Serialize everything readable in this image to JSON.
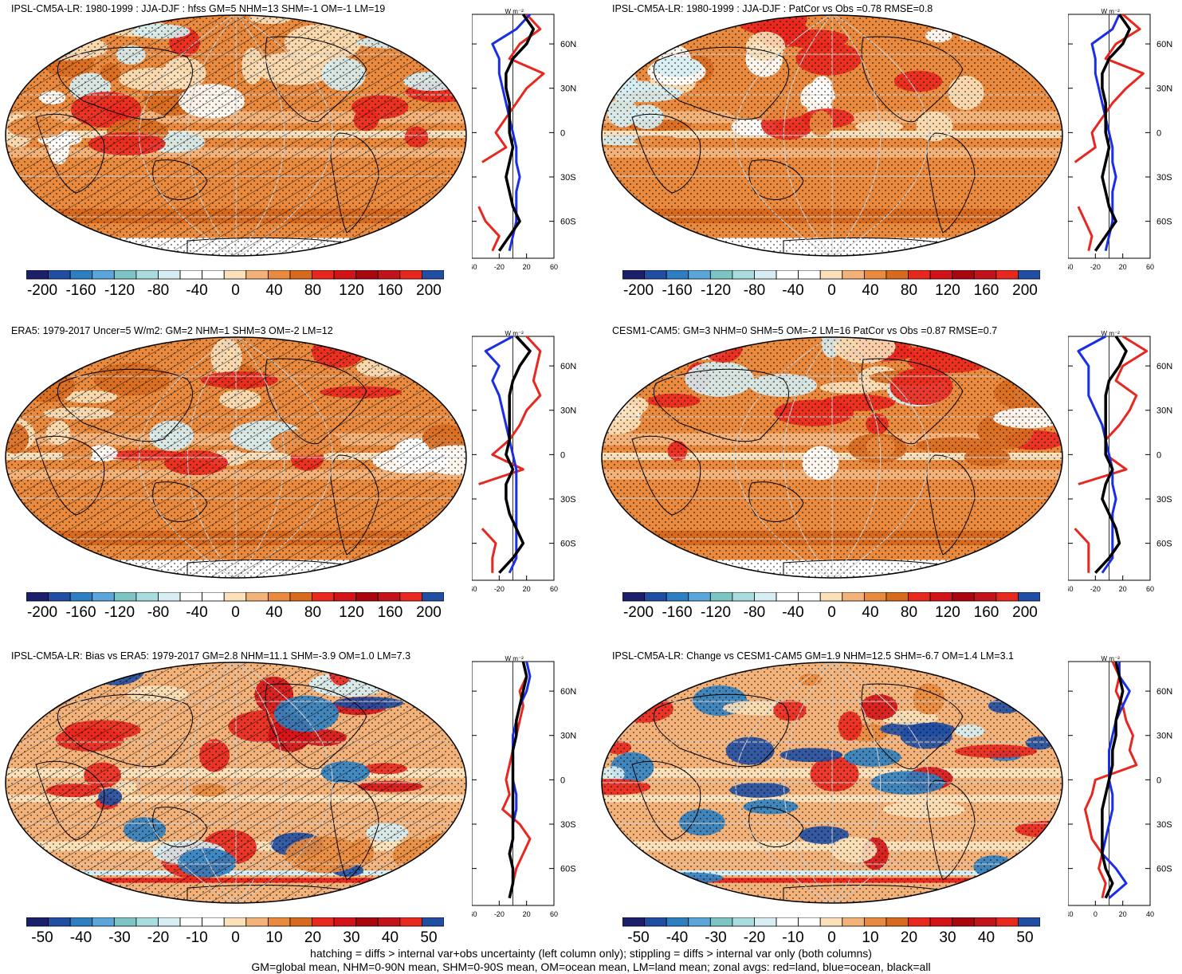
{
  "colors": {
    "land": "#e8271e",
    "ocean": "#1a2ee8",
    "all": "#000000",
    "palette": [
      "#1c1f6b",
      "#1f4ea3",
      "#2d7fc1",
      "#5aa6db",
      "#7cc5c4",
      "#a9dcdf",
      "#d6eef3",
      "#ffffff",
      "#ffffff",
      "#fbe0b9",
      "#f3b27a",
      "#e98a3e",
      "#d86a1e",
      "#e8271e",
      "#d41318",
      "#a9060e",
      "#c4121b",
      "#e8271e",
      "#1f4ea3"
    ]
  },
  "panels": [
    {
      "id": "model-season-diff",
      "title": "IPSL-CM5A-LR: 1980-1999 : JJA-DJF : hfss GM=5 NHM=13 SHM=-1 OM=-1 LM=19",
      "colorbar_labels": [
        "-200",
        "-160",
        "-120",
        "-80",
        "-40",
        "0",
        "40",
        "80",
        "120",
        "160",
        "200"
      ],
      "zonal_ylabels": [
        "60N",
        "30N",
        "0",
        "30S",
        "60S"
      ],
      "zonal_xlabels": [
        "-60",
        "-20",
        "20",
        "60"
      ],
      "unit_label": "W m⁻²",
      "overlay": "hatch+stipple",
      "pattern": "seasonal"
    },
    {
      "id": "model-season-diff-cor",
      "title": "IPSL-CM5A-LR: 1980-1999 : JJA-DJF : PatCor vs Obs =0.78 RMSE=0.8",
      "colorbar_labels": [
        "-200",
        "-160",
        "-120",
        "-80",
        "-40",
        "0",
        "40",
        "80",
        "120",
        "160",
        "200"
      ],
      "zonal_ylabels": [
        "60N",
        "30N",
        "0",
        "30S",
        "60S"
      ],
      "zonal_xlabels": [
        "-60",
        "-20",
        "20",
        "60"
      ],
      "unit_label": "W m⁻²",
      "overlay": "stipple",
      "pattern": "seasonal"
    },
    {
      "id": "era5",
      "title": "ERA5: 1979-2017 Uncer=5 W/m2: GM=2 NHM=1 SHM=3 OM=-2 LM=12",
      "colorbar_labels": [
        "-200",
        "-160",
        "-120",
        "-80",
        "-40",
        "0",
        "40",
        "80",
        "120",
        "160",
        "200"
      ],
      "zonal_ylabels": [
        "60N",
        "30N",
        "0",
        "30S",
        "60S"
      ],
      "zonal_xlabels": [
        "-60",
        "-20",
        "20",
        "60"
      ],
      "unit_label": "W m⁻²",
      "overlay": "hatch+stipple",
      "pattern": "seasonal"
    },
    {
      "id": "cesm",
      "title": "CESM1-CAM5: GM=3 NHM=0 SHM=5 OM=-2 LM=16 PatCor vs Obs =0.87 RMSE=0.7",
      "colorbar_labels": [
        "-200",
        "-160",
        "-120",
        "-80",
        "-40",
        "0",
        "40",
        "80",
        "120",
        "160",
        "200"
      ],
      "zonal_ylabels": [
        "60N",
        "30N",
        "0",
        "30S",
        "60S"
      ],
      "zonal_xlabels": [
        "-60",
        "-20",
        "20",
        "60"
      ],
      "unit_label": "W m⁻²",
      "overlay": "stipple",
      "pattern": "seasonal"
    },
    {
      "id": "bias-era5",
      "title": "IPSL-CM5A-LR: Bias vs ERA5: 1979-2017 GM=2.8 NHM=11.1 SHM=-3.9 OM=1.0 LM=7.3",
      "colorbar_labels": [
        "-50",
        "-40",
        "-30",
        "-20",
        "-10",
        "0",
        "10",
        "20",
        "30",
        "40",
        "50"
      ],
      "zonal_ylabels": [
        "60N",
        "30N",
        "0",
        "30S",
        "60S"
      ],
      "zonal_xlabels": [
        "-60",
        "-20",
        "20",
        "60"
      ],
      "unit_label": "W m⁻²",
      "overlay": "hatch+stipple",
      "pattern": "bias"
    },
    {
      "id": "change-cesm",
      "title": "IPSL-CM5A-LR: Change vs CESM1-CAM5 GM=1.9 NHM=12.5 SHM=-6.7 OM=1.4 LM=3.1",
      "colorbar_labels": [
        "-50",
        "-40",
        "-30",
        "-20",
        "-10",
        "0",
        "10",
        "20",
        "30",
        "40",
        "50"
      ],
      "zonal_ylabels": [
        "60N",
        "30N",
        "0",
        "30S",
        "60S"
      ],
      "zonal_xlabels": [
        "-40",
        "0",
        "20",
        "40"
      ],
      "unit_label": "W m⁻²",
      "overlay": "stipple",
      "pattern": "bias"
    }
  ],
  "footer": {
    "line1": "hatching = diffs > internal var+obs uncertainty (left column only); stippling = diffs > internal var only (both columns)",
    "line2": "GM=global mean, NHM=0-90N mean, SHM=0-90S mean, OM=ocean mean, LM=land mean; zonal avgs: red=land, blue=ocean, black=all"
  },
  "chart_data": [
    {
      "type": "heatmap",
      "title": "IPSL-CM5A-LR: 1980-1999 : JJA-DJF : hfss GM=5 NHM=13 SHM=-1 OM=-1 LM=19",
      "colorbar": [
        -200,
        -160,
        -120,
        -80,
        -40,
        0,
        40,
        80,
        120,
        160,
        200
      ],
      "zonal": {
        "lat": [
          80,
          70,
          60,
          50,
          40,
          30,
          20,
          10,
          0,
          -10,
          -20,
          -30,
          -40,
          -50,
          -60,
          -70,
          -80
        ],
        "land": [
          20,
          40,
          10,
          -5,
          45,
          20,
          5,
          -10,
          -25,
          -10,
          -45,
          null,
          null,
          -50,
          -40,
          -20,
          -30
        ],
        "ocean": [
          25,
          5,
          -30,
          -20,
          -20,
          -15,
          -10,
          -5,
          0,
          5,
          5,
          10,
          5,
          5,
          5,
          0,
          -5
        ],
        "all": [
          15,
          30,
          20,
          0,
          -10,
          -10,
          -5,
          -5,
          -5,
          0,
          -5,
          -10,
          -5,
          0,
          10,
          -5,
          -20
        ]
      }
    },
    {
      "type": "heatmap",
      "title": "IPSL-CM5A-LR: 1980-1999 : JJA-DJF : PatCor vs Obs =0.78 RMSE=0.8",
      "colorbar": [
        -200,
        -160,
        -120,
        -80,
        -40,
        0,
        40,
        80,
        120,
        160,
        200
      ],
      "zonal": {
        "lat": [
          80,
          70,
          60,
          50,
          40,
          30,
          20,
          10,
          0,
          -10,
          -20,
          -30,
          -40,
          -50,
          -60,
          -70,
          -80
        ],
        "land": [
          20,
          45,
          10,
          -5,
          50,
          25,
          5,
          -10,
          -25,
          -20,
          -50,
          null,
          null,
          -45,
          -35,
          -25,
          -30
        ],
        "ocean": [
          15,
          5,
          -25,
          -20,
          -20,
          -15,
          -10,
          -5,
          0,
          5,
          5,
          10,
          5,
          5,
          5,
          0,
          -5
        ],
        "all": [
          15,
          30,
          20,
          0,
          -10,
          -10,
          -5,
          -5,
          -5,
          0,
          -5,
          -10,
          -5,
          0,
          10,
          -5,
          -20
        ]
      }
    },
    {
      "type": "heatmap",
      "title": "ERA5: 1979-2017 Uncer=5 W/m2: GM=2 NHM=1 SHM=3 OM=-2 LM=12",
      "colorbar": [
        -200,
        -160,
        -120,
        -80,
        -40,
        0,
        40,
        80,
        120,
        160,
        200
      ],
      "zonal": {
        "lat": [
          80,
          70,
          60,
          50,
          40,
          30,
          20,
          10,
          0,
          -10,
          -20,
          -30,
          -40,
          -50,
          -60,
          -70,
          -80
        ],
        "land": [
          20,
          40,
          35,
          30,
          40,
          20,
          10,
          -5,
          -30,
          15,
          -50,
          null,
          null,
          -45,
          -25,
          -30,
          -30
        ],
        "ocean": [
          0,
          -40,
          -20,
          -30,
          -20,
          -15,
          -10,
          -5,
          0,
          5,
          5,
          5,
          5,
          5,
          5,
          5,
          -5
        ],
        "all": [
          5,
          25,
          10,
          0,
          -5,
          -5,
          -5,
          -5,
          -10,
          0,
          -10,
          -10,
          -5,
          5,
          15,
          0,
          -20
        ]
      }
    },
    {
      "type": "heatmap",
      "title": "CESM1-CAM5: GM=3 NHM=0 SHM=5 OM=-2 LM=16 PatCor vs Obs =0.87 RMSE=0.7",
      "colorbar": [
        -200,
        -160,
        -120,
        -80,
        -40,
        0,
        40,
        80,
        120,
        160,
        200
      ],
      "zonal": {
        "lat": [
          80,
          70,
          60,
          50,
          40,
          30,
          20,
          10,
          0,
          -10,
          -20,
          -30,
          -40,
          -50,
          -60,
          -70,
          -80
        ],
        "land": [
          20,
          55,
          20,
          10,
          40,
          30,
          15,
          -5,
          -5,
          25,
          -45,
          null,
          null,
          -50,
          -30,
          -30,
          -30
        ],
        "ocean": [
          -5,
          -45,
          -30,
          -30,
          -30,
          -20,
          -10,
          -5,
          0,
          5,
          5,
          10,
          5,
          5,
          5,
          5,
          -10
        ],
        "all": [
          10,
          25,
          15,
          0,
          -5,
          -5,
          -5,
          -5,
          -5,
          5,
          -5,
          -10,
          0,
          10,
          15,
          0,
          -20
        ]
      }
    },
    {
      "type": "heatmap",
      "title": "IPSL-CM5A-LR: Bias vs ERA5: 1979-2017 GM=2.8 NHM=11.1 SHM=-3.9 OM=1.0 LM=7.3",
      "colorbar": [
        -50,
        -40,
        -30,
        -20,
        -10,
        0,
        10,
        20,
        30,
        40,
        50
      ],
      "zonal": {
        "lat": [
          80,
          70,
          60,
          50,
          40,
          30,
          20,
          10,
          0,
          -10,
          -20,
          -30,
          -40,
          -50,
          -60,
          -70,
          -80
        ],
        "land": [
          15,
          20,
          10,
          15,
          10,
          5,
          0,
          -5,
          -10,
          -5,
          -15,
          10,
          25,
          15,
          5,
          0,
          -5
        ],
        "ocean": [
          20,
          25,
          20,
          10,
          5,
          0,
          0,
          0,
          0,
          5,
          5,
          0,
          0,
          -5,
          0,
          0,
          -5
        ],
        "all": [
          15,
          20,
          15,
          10,
          5,
          5,
          0,
          0,
          0,
          0,
          0,
          0,
          0,
          -5,
          0,
          0,
          -5
        ]
      }
    },
    {
      "type": "heatmap",
      "title": "IPSL-CM5A-LR: Change vs CESM1-CAM5 GM=1.9 NHM=12.5 SHM=-6.7 OM=1.4 LM=3.1",
      "colorbar": [
        -50,
        -40,
        -30,
        -20,
        -10,
        0,
        10,
        20,
        30,
        40,
        50
      ],
      "zonal": {
        "lat": [
          80,
          70,
          60,
          50,
          40,
          30,
          20,
          10,
          0,
          -10,
          -20,
          -30,
          -40,
          -50,
          -60,
          -70,
          -80
        ],
        "land": [
          5,
          15,
          10,
          20,
          25,
          35,
          30,
          40,
          -20,
          -25,
          -35,
          -30,
          -25,
          -10,
          -15,
          -5,
          -10
        ],
        "ocean": [
          15,
          15,
          30,
          20,
          10,
          5,
          0,
          0,
          0,
          5,
          5,
          0,
          -5,
          -10,
          10,
          25,
          0
        ],
        "all": [
          10,
          15,
          20,
          15,
          10,
          10,
          5,
          5,
          0,
          -5,
          -10,
          -10,
          -10,
          -10,
          -5,
          5,
          -5
        ]
      }
    }
  ]
}
